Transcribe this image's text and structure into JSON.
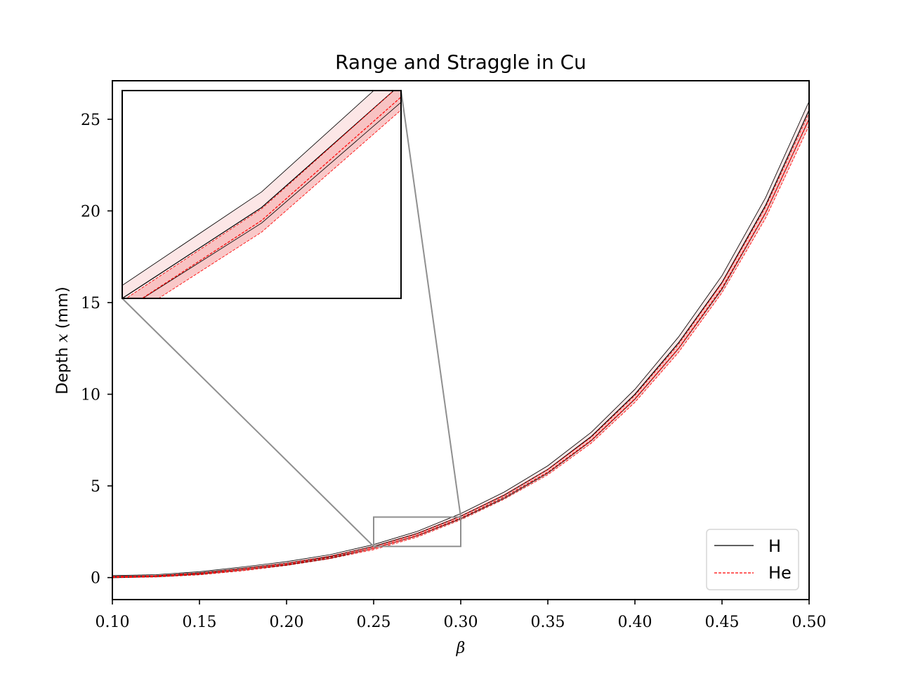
{
  "chart_data": {
    "type": "line",
    "title": "Range and Straggle in Cu",
    "xlabel": "β",
    "ylabel": {
      "prefix": "Depth ",
      "var": "x",
      "suffix": " (mm)"
    },
    "xlim": [
      0.1,
      0.5
    ],
    "ylim": [
      -1.2,
      27.1
    ],
    "xticks": [
      0.1,
      0.15,
      0.2,
      0.25,
      0.3,
      0.35,
      0.4,
      0.45,
      0.5
    ],
    "xtick_labels": [
      "0.10",
      "0.15",
      "0.20",
      "0.25",
      "0.30",
      "0.35",
      "0.40",
      "0.45",
      "0.50"
    ],
    "yticks": [
      0,
      5,
      10,
      15,
      20,
      25
    ],
    "ytick_labels": [
      "0",
      "5",
      "10",
      "15",
      "20",
      "25"
    ],
    "grid": false,
    "legend_position": "lower-right",
    "x": [
      0.1,
      0.125,
      0.15,
      0.175,
      0.2,
      0.225,
      0.25,
      0.275,
      0.3,
      0.325,
      0.35,
      0.375,
      0.4,
      0.425,
      0.45,
      0.475,
      0.5
    ],
    "series": [
      {
        "name": "H",
        "color": "#000000",
        "style": "solid",
        "values": [
          0.05,
          0.1,
          0.25,
          0.5,
          0.78,
          1.15,
          1.7,
          2.4,
          3.35,
          4.5,
          5.9,
          7.7,
          10.0,
          12.8,
          16.1,
          20.3,
          25.5
        ],
        "band": [
          0.06,
          0.06,
          0.07,
          0.08,
          0.09,
          0.1,
          0.1,
          0.12,
          0.14,
          0.17,
          0.2,
          0.23,
          0.27,
          0.32,
          0.37,
          0.42,
          0.48
        ]
      },
      {
        "name": "He",
        "color": "#ff0000",
        "style": "dashed",
        "values": [
          0.03,
          0.07,
          0.2,
          0.43,
          0.72,
          1.1,
          1.6,
          2.3,
          3.25,
          4.4,
          5.75,
          7.5,
          9.75,
          12.5,
          15.8,
          19.9,
          25.0
        ],
        "band": [
          0.04,
          0.04,
          0.05,
          0.06,
          0.06,
          0.07,
          0.08,
          0.09,
          0.1,
          0.12,
          0.14,
          0.16,
          0.19,
          0.22,
          0.26,
          0.3,
          0.35
        ]
      }
    ],
    "inset": {
      "xlim": [
        0.25,
        0.3
      ],
      "ylim": [
        1.7,
        3.3
      ]
    }
  },
  "colors": {
    "band_fill": "#f7b6b6",
    "connector": "#8f8f8f"
  }
}
